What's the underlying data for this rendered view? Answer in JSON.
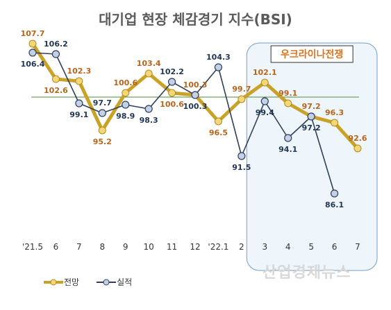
{
  "chart_data": {
    "type": "line",
    "title": "대기업 현장 체감경기 지수(BSI)",
    "categories": [
      "'21.5",
      "6",
      "7",
      "8",
      "9",
      "10",
      "11",
      "12",
      "'22.1",
      "2",
      "3",
      "4",
      "5",
      "6",
      "7"
    ],
    "series": [
      {
        "name": "전망",
        "values": [
          107.7,
          102.6,
          102.3,
          95.2,
          100.6,
          103.4,
          100.6,
          100.3,
          96.5,
          99.7,
          102.1,
          99.1,
          97.2,
          96.3,
          92.6
        ],
        "color": "#c9a227"
      },
      {
        "name": "실적",
        "values": [
          106.4,
          106.2,
          99.1,
          97.7,
          98.9,
          98.3,
          102.2,
          100.3,
          104.3,
          91.5,
          99.4,
          94.1,
          97.2,
          86.1,
          null
        ],
        "color": "#2e3f5c"
      }
    ],
    "reference_line": 100,
    "ylim": [
      80,
      110
    ],
    "annotation": {
      "label": "우크라이나전쟁",
      "start_category": "3",
      "end_category": "7"
    },
    "watermark": "산업경제뉴스"
  }
}
